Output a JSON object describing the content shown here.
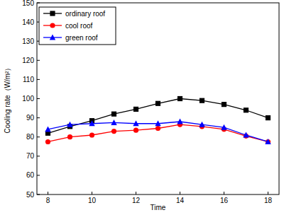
{
  "chart_data": {
    "type": "line",
    "x_label": "Time",
    "y_label": "Cooling rate（W/m²）",
    "x": [
      8,
      9,
      10,
      11,
      12,
      13,
      14,
      15,
      16,
      17,
      18
    ],
    "series": [
      {
        "name": "ordinary roof",
        "color": "#000000",
        "marker": "square",
        "values": [
          82,
          85.5,
          88.5,
          92,
          94.5,
          97.5,
          100,
          99,
          97,
          94,
          90
        ]
      },
      {
        "name": "cool roof",
        "color": "#ff0000",
        "marker": "circle",
        "values": [
          77.5,
          80,
          81,
          83,
          83.5,
          84.5,
          86.5,
          85.5,
          84,
          80.5,
          77.5
        ]
      },
      {
        "name": "green roof",
        "color": "#0000ff",
        "marker": "triangle",
        "values": [
          84,
          86.5,
          87,
          87.5,
          87,
          87,
          88,
          86.5,
          85,
          81,
          77.5
        ]
      }
    ],
    "xlim": [
      7.5,
      18.5
    ],
    "xticks": [
      8,
      10,
      12,
      14,
      16,
      18
    ],
    "ylim": [
      50,
      150
    ],
    "yticks": [
      50,
      60,
      70,
      80,
      90,
      100,
      110,
      120,
      130,
      140,
      150
    ],
    "legend": "upper left"
  }
}
